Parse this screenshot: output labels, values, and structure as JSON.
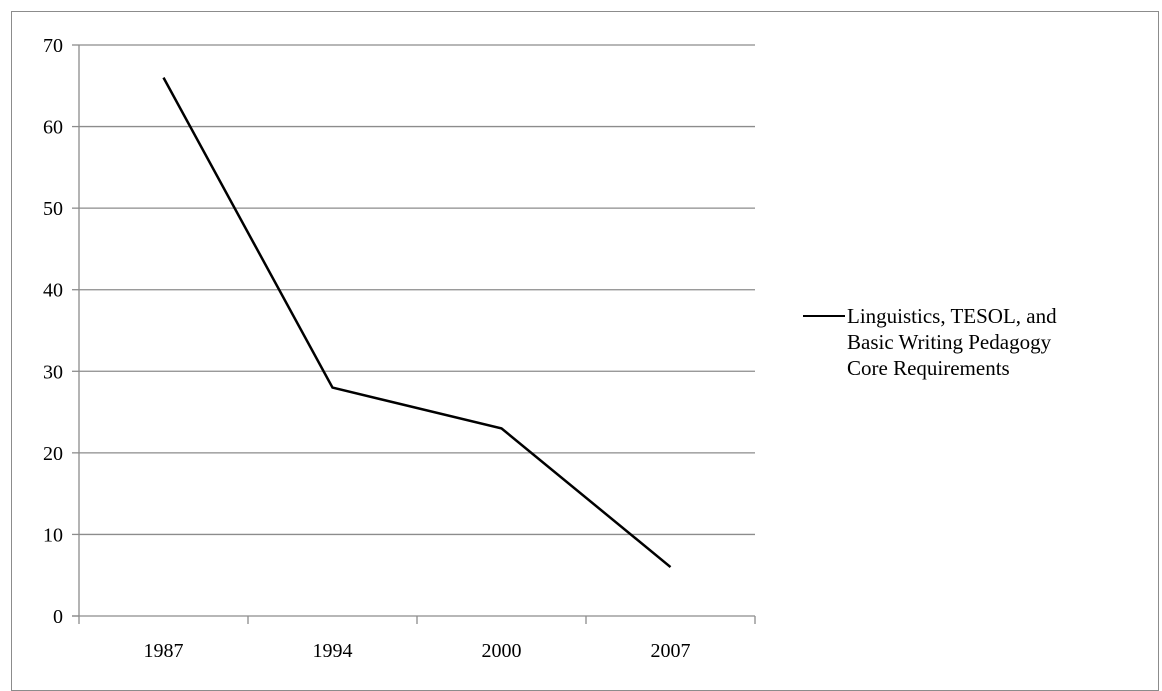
{
  "chart_data": {
    "type": "line",
    "categories": [
      "1987",
      "1994",
      "2000",
      "2007"
    ],
    "series": [
      {
        "name": "Linguistics, TESOL, and Basic Writing Pedagogy Core Requirements",
        "values": [
          66,
          28,
          23,
          6
        ],
        "color": "#000000"
      }
    ],
    "title": "",
    "xlabel": "",
    "ylabel": "",
    "ylim": [
      0,
      70
    ],
    "yticks": [
      "0",
      "10",
      "20",
      "30",
      "40",
      "50",
      "60",
      "70"
    ],
    "grid": true,
    "legend": "right"
  }
}
